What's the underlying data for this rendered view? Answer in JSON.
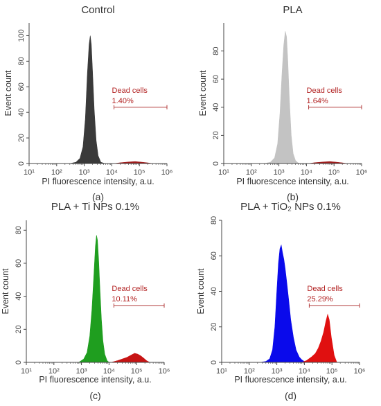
{
  "chart_data": [
    {
      "type": "area",
      "panel_label": "(a)",
      "title": "Control",
      "xlabel": "PI fluorescence intensity, a.u.",
      "ylabel": "Event count",
      "x_scale": "log",
      "x_ticks": [
        "10^1",
        "10^2",
        "10^3",
        "10^4",
        "10^5",
        "10^6"
      ],
      "ylim": [
        0,
        110
      ],
      "y_ticks": [
        0,
        20,
        40,
        60,
        80,
        100
      ],
      "gate": {
        "label": "Dead cells",
        "value": "1.40%",
        "from": 12000,
        "to": 1000000
      },
      "series": [
        {
          "color": "#3a3a3a",
          "x": [
            300,
            500,
            700,
            900,
            1100,
            1300,
            1500,
            1650,
            1800,
            2000,
            2300,
            2700,
            3200,
            4000,
            5000,
            6000
          ],
          "values": [
            0,
            1,
            4,
            13,
            35,
            70,
            93,
            100,
            93,
            72,
            42,
            18,
            6,
            1,
            0.3,
            0
          ]
        },
        {
          "color": "#9e1c1c",
          "x": [
            12000,
            20000,
            40000,
            70000,
            120000,
            200000,
            300000
          ],
          "values": [
            0,
            0.6,
            1.2,
            1.5,
            1.1,
            0.5,
            0
          ]
        }
      ]
    },
    {
      "type": "area",
      "panel_label": "(b)",
      "title": "PLA",
      "xlabel": "PI fluorescence intensity, a.u.",
      "ylabel": "Event count",
      "x_scale": "log",
      "x_ticks": [
        "10^1",
        "10^2",
        "10^3",
        "10^4",
        "10^5",
        "10^6"
      ],
      "ylim": [
        0,
        100
      ],
      "y_ticks": [
        0,
        20,
        40,
        60,
        80
      ],
      "gate": {
        "label": "Dead cells",
        "value": "1.64%",
        "from": 12000,
        "to": 1000000
      },
      "series": [
        {
          "color": "#c3c3c3",
          "x": [
            300,
            500,
            700,
            900,
            1100,
            1300,
            1500,
            1700,
            1900,
            2100,
            2400,
            2800,
            3300,
            4000,
            5000,
            6000
          ],
          "values": [
            0,
            1,
            4,
            14,
            36,
            64,
            84,
            94,
            90,
            74,
            46,
            20,
            7,
            2,
            0.4,
            0
          ]
        },
        {
          "color": "#9e1c1c",
          "x": [
            12000,
            20000,
            40000,
            70000,
            120000,
            200000,
            300000
          ],
          "values": [
            0,
            0.6,
            1.1,
            1.4,
            1.0,
            0.5,
            0
          ]
        }
      ]
    },
    {
      "type": "area",
      "panel_label": "(c)",
      "title": "PLA + Ti NPs 0.1%",
      "xlabel": "PI fluorescence intensity, a.u.",
      "ylabel": "Event count",
      "x_scale": "log",
      "x_ticks": [
        "10^1",
        "10^2",
        "10^3",
        "10^4",
        "10^5",
        "10^6"
      ],
      "ylim": [
        0,
        86
      ],
      "y_ticks": [
        0,
        20,
        40,
        60,
        80
      ],
      "gate": {
        "label": "Dead cells",
        "value": "10.11%",
        "from": 15000,
        "to": 1000000
      },
      "series": [
        {
          "color": "#1f9e1f",
          "x": [
            800,
            1200,
            1600,
            2000,
            2400,
            2800,
            3200,
            3500,
            3800,
            4200,
            4700,
            5300,
            6000,
            7000,
            8500,
            10000
          ],
          "values": [
            0,
            2,
            6,
            16,
            32,
            52,
            70,
            77,
            74,
            62,
            44,
            26,
            13,
            5,
            1,
            0
          ]
        },
        {
          "color": "#c71414",
          "x": [
            12000,
            20000,
            30000,
            45000,
            65000,
            85000,
            110000,
            140000,
            180000,
            230000,
            300000
          ],
          "values": [
            0,
            1,
            2,
            3,
            4.5,
            5.5,
            5,
            4,
            2.5,
            1,
            0
          ]
        }
      ]
    },
    {
      "type": "area",
      "panel_label": "(d)",
      "title": "PLA + TiO₂ NPs 0.1%",
      "xlabel": "PI fluorescence intensity, a.u.",
      "ylabel": "Event count",
      "x_scale": "log",
      "x_ticks": [
        "10^1",
        "10^2",
        "10^3",
        "10^4",
        "10^5",
        "10^6"
      ],
      "ylim": [
        0,
        80
      ],
      "y_ticks": [
        0,
        20,
        40,
        60,
        80
      ],
      "gate": {
        "label": "Dead cells",
        "value": "25.29%",
        "from": 15000,
        "to": 1000000
      },
      "series": [
        {
          "color": "#0a0aeb",
          "x": [
            250,
            400,
            550,
            700,
            850,
            1000,
            1150,
            1300,
            1450,
            1600,
            1800,
            2000,
            2300,
            2700,
            3200,
            4000,
            5000,
            6500,
            8000,
            10000,
            14000
          ],
          "values": [
            0,
            0.5,
            2,
            7,
            20,
            40,
            56,
            64,
            66,
            62,
            58,
            53,
            45,
            35,
            24,
            14,
            7,
            3,
            1.5,
            0.5,
            0
          ]
        },
        {
          "color": "#e01010",
          "x": [
            8000,
            12000,
            18000,
            25000,
            32000,
            40000,
            50000,
            60000,
            70000,
            80000,
            95000,
            120000,
            150000
          ],
          "values": [
            0,
            1,
            3,
            5,
            8,
            12,
            17,
            23,
            27,
            24,
            14,
            4,
            0
          ]
        }
      ]
    }
  ]
}
